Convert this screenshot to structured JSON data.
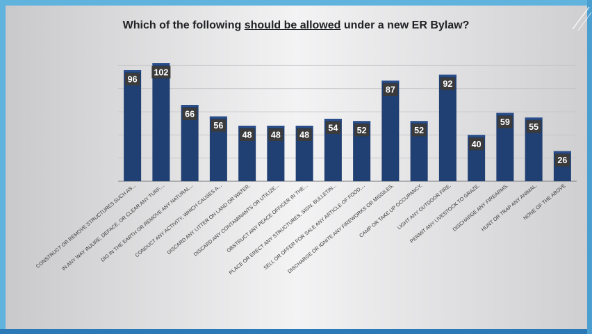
{
  "title": {
    "before": "Which of the following ",
    "underlined": "should be allowed",
    "after": " under a new ER Bylaw?"
  },
  "colors": {
    "bar": "#203f72",
    "bar_top": "#2a4e8a",
    "label_bg": "#3b3b3b",
    "label_text": "#ffffff",
    "grid": "#c4c4c7",
    "axis": "#8e8e91",
    "tick_text": "#3a3a3a"
  },
  "chart_data": {
    "type": "bar",
    "title": "Which of the following should be allowed under a new ER Bylaw?",
    "xlabel": "",
    "ylabel": "",
    "ylim": [
      0,
      102
    ],
    "grid": true,
    "legend": "none",
    "categories": [
      "CONSTRUCT OR REMOVE STRUCTURES SUCH AS...",
      "IN ANY WAY INJURE, DEFACE, OR CLEAR ANY TURF....",
      "DIG IN THE EARTH OR REMOVE ANY NATURAL...",
      "CONDUCT ANY ACTIVITY, WHICH CAUSES A...",
      "DISCARD ANY LITTER ON LAND OR WATER.",
      "DISCARD ANY CONTAMINANTS OR UTILIZE...",
      "OBSTRUCT ANY PEACE OFFICER IN THE...",
      "PLACE OR ERECT ANY STRUCTURES, SIGN, BULLETIN...",
      "SELL OR OFFER FOR SALE ANY ARTICLE OF FOOD,...",
      "DISCHARGE OR IGNITE ANY FIREWORKS OR MISSILES.",
      "CAMP OR TAKE UP OCCUPANCY.",
      "LIGHT ANY OUTDOOR FIRE.",
      "PERMIT ANY LIVESTOCK TO GRAZE.",
      "DISCHARGE ANY FIREARMS.",
      "HUNT OR TRAP ANY ANIMAL.",
      "NONE OF THE ABOVE"
    ],
    "values": [
      96,
      102,
      66,
      56,
      48,
      48,
      48,
      54,
      52,
      87,
      52,
      92,
      40,
      59,
      55,
      26
    ]
  }
}
